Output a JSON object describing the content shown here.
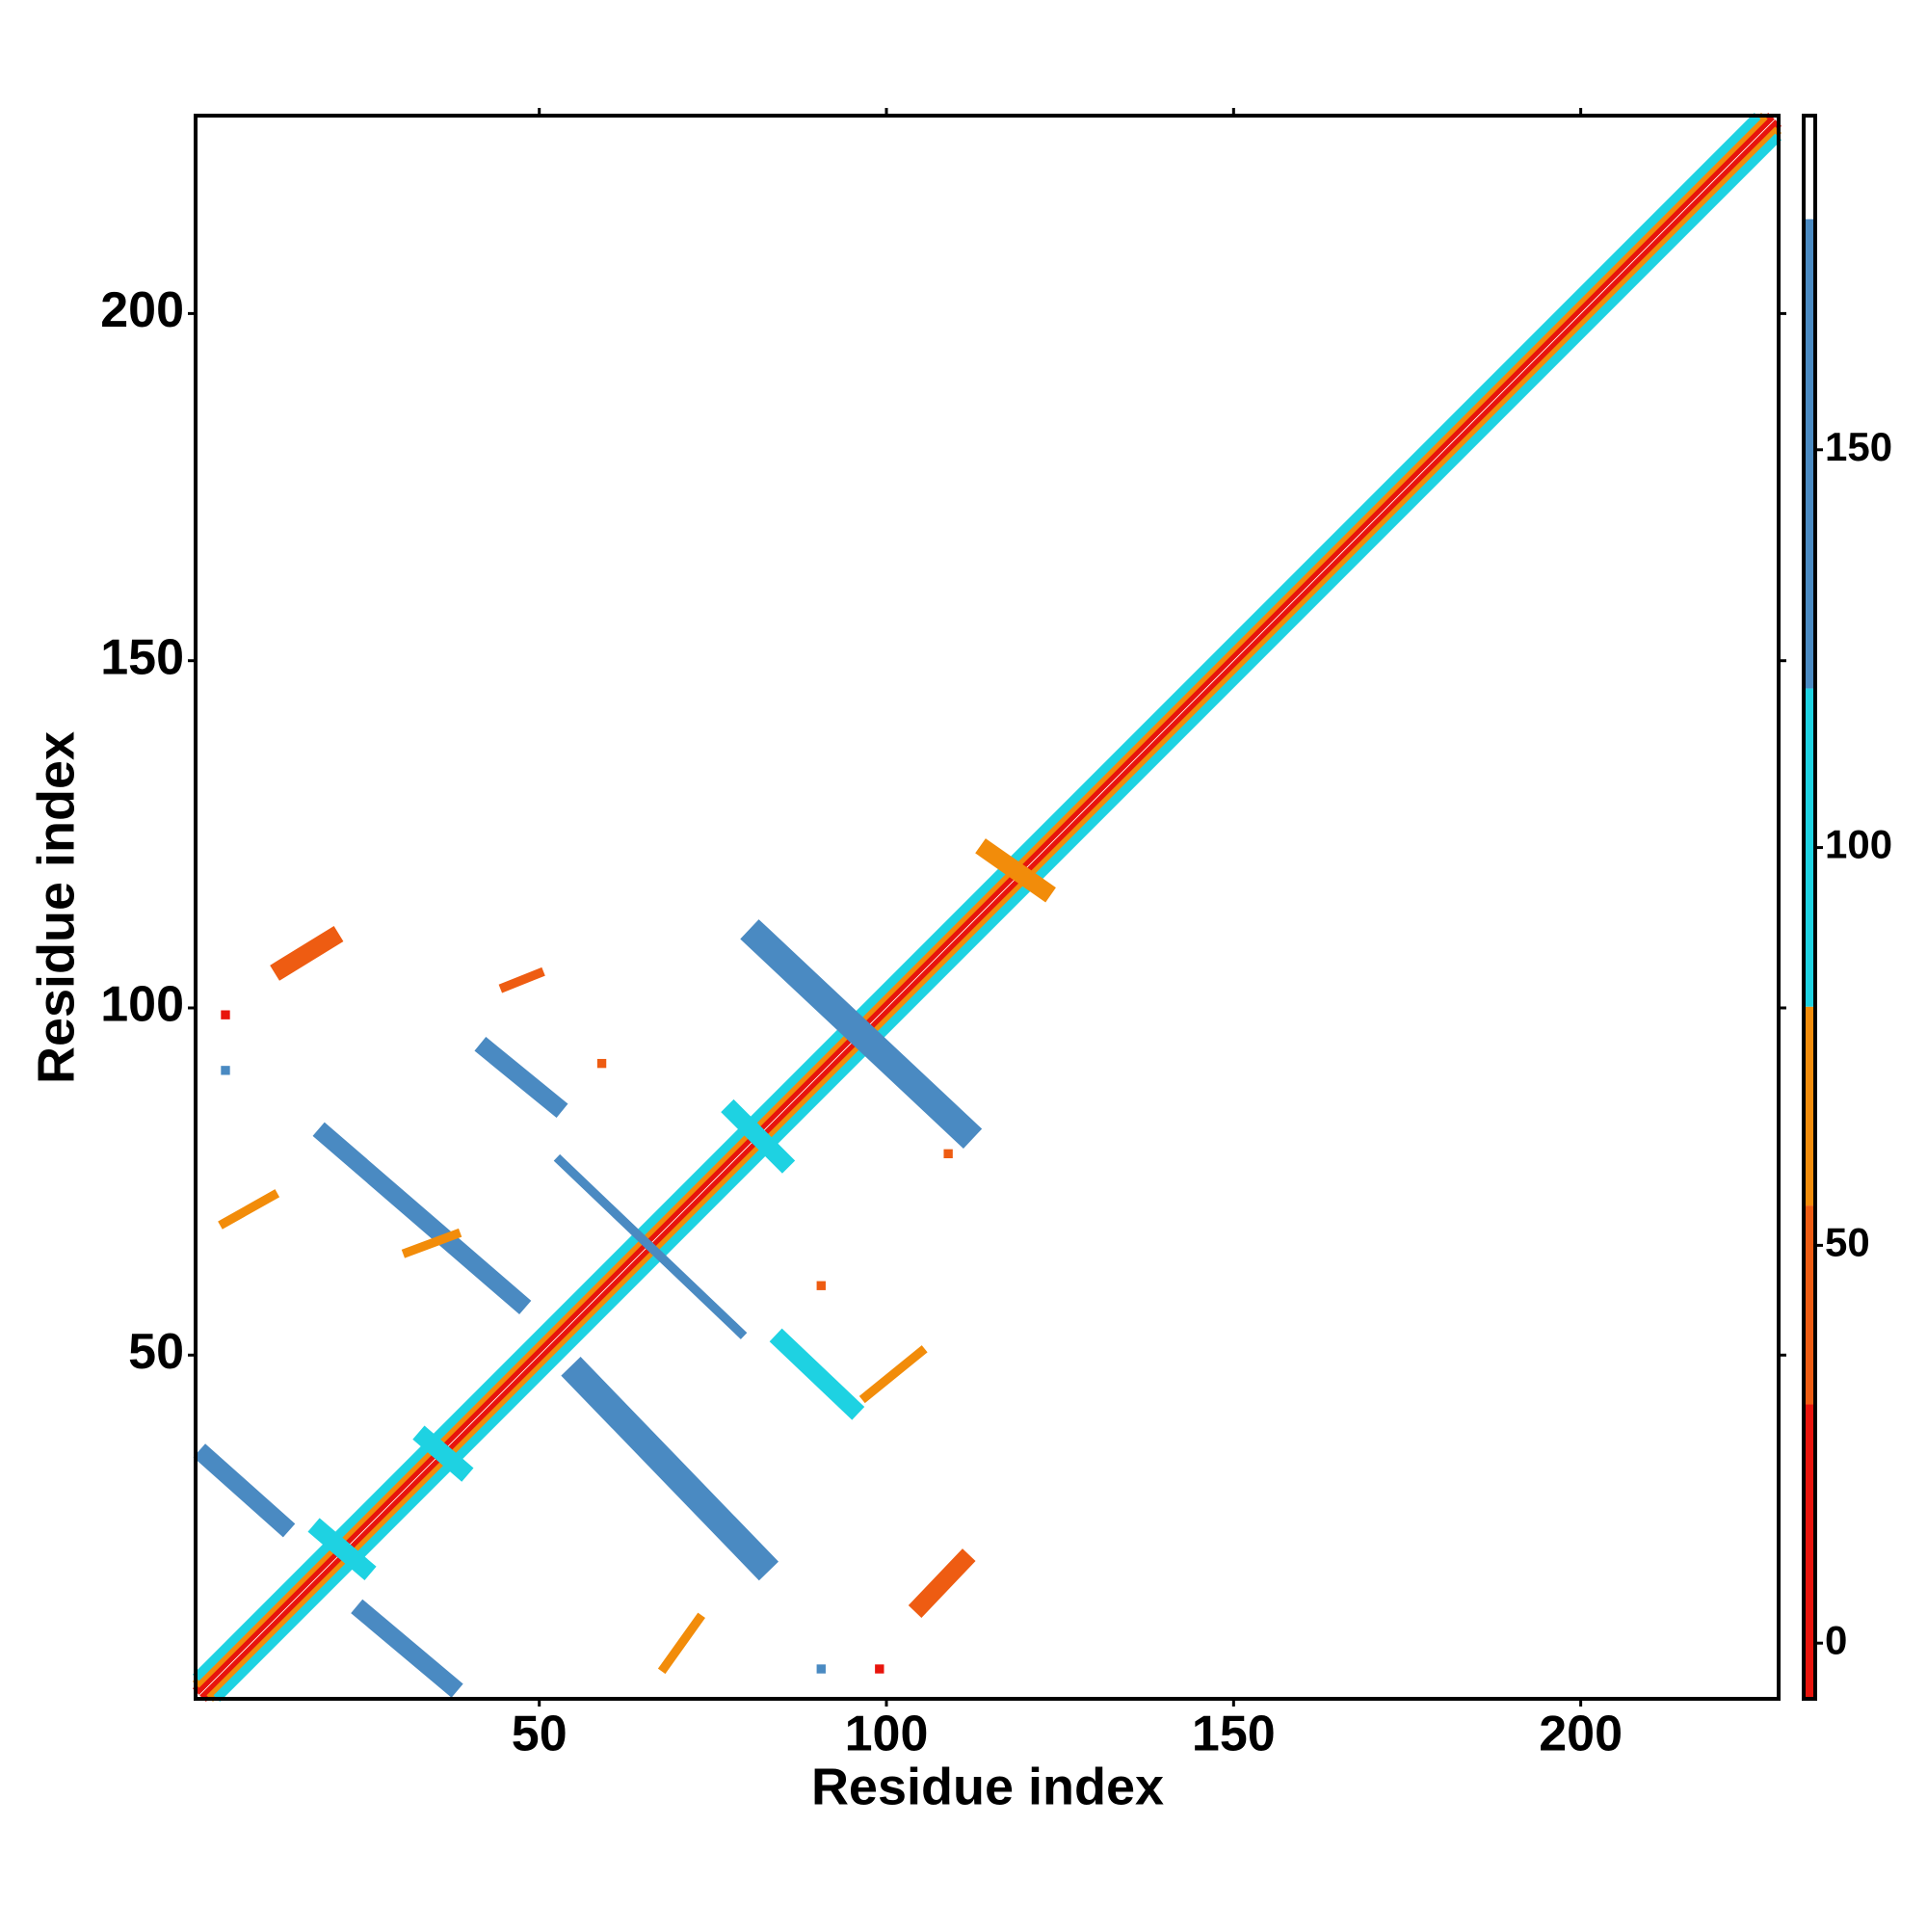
{
  "chart_data": {
    "type": "contact-map",
    "xlabel": "Residue index",
    "ylabel": "Residue index",
    "xlim": [
      0.5,
      228.5
    ],
    "ylim": [
      0.5,
      228.5
    ],
    "xticks": [
      50,
      100,
      150,
      200
    ],
    "yticks": [
      50,
      100,
      150,
      200
    ],
    "colorbar": {
      "lim": [
        -7,
        192
      ],
      "ticks": [
        0,
        50,
        100,
        150
      ],
      "bands": [
        {
          "from": -7,
          "to": 30,
          "color": "#e8140c"
        },
        {
          "from": 30,
          "to": 55,
          "color": "#ee5c12"
        },
        {
          "from": 55,
          "to": 80,
          "color": "#f28c0a"
        },
        {
          "from": 80,
          "to": 120,
          "color": "#1ed2e2"
        },
        {
          "from": 120,
          "to": 179,
          "color": "#4a8ac2"
        },
        {
          "from": 179,
          "to": 192,
          "color": "#ffffff"
        }
      ]
    },
    "segments": [
      {
        "x": [
          1,
          227
        ],
        "y": [
          2,
          228
        ],
        "value": 5,
        "width": 1
      },
      {
        "x": [
          2,
          228
        ],
        "y": [
          1,
          227
        ],
        "value": 5,
        "width": 1
      },
      {
        "x": [
          1,
          226
        ],
        "y": [
          3,
          228
        ],
        "value": 60,
        "width": 1
      },
      {
        "x": [
          3,
          228
        ],
        "y": [
          1,
          226
        ],
        "value": 60,
        "width": 1
      },
      {
        "x": [
          1,
          225
        ],
        "y": [
          4,
          228
        ],
        "value": 95,
        "width": 1
      },
      {
        "x": [
          4,
          228
        ],
        "y": [
          1,
          225
        ],
        "value": 95,
        "width": 1
      },
      {
        "x": [
          19.2,
          47
        ],
        "y": [
          81.7,
          57.7
        ],
        "value": 140,
        "width": 2
      },
      {
        "x": [
          42.5,
          52.3
        ],
        "y": [
          94,
          86
        ],
        "value": 140,
        "width": 2
      },
      {
        "x": [
          81.7,
          111
        ],
        "y": [
          110,
          82.5
        ],
        "value": 140,
        "width": 3
      },
      {
        "x": [
          55.9,
          81.7
        ],
        "y": [
          47,
          20.3
        ],
        "value": 140,
        "width": 3
      },
      {
        "x": [
          53,
          79
        ],
        "y": [
          78,
          53.2
        ],
        "value": 150,
        "width": 1
      },
      {
        "x": [
          85,
          95
        ],
        "y": [
          52,
          42.5
        ],
        "value": 110,
        "width": 2
      },
      {
        "x": [
          2,
          13
        ],
        "y": [
          35.4,
          25.6
        ],
        "value": 130,
        "width": 2
      },
      {
        "x": [
          24.7,
          37.2
        ],
        "y": [
          13,
          2.5
        ],
        "value": 140,
        "width": 2
      },
      {
        "x": [
          13,
          20
        ],
        "y": [
          105.7,
          110
        ],
        "value": 45,
        "width": 2
      },
      {
        "x": [
          105,
          111
        ],
        "y": [
          14,
          20.3
        ],
        "value": 45,
        "width": 2
      },
      {
        "x": [
          4.6,
          11.7
        ],
        "y": [
          69,
          73
        ],
        "value": 60,
        "width": 1
      },
      {
        "x": [
          45,
          50
        ],
        "y": [
          103,
          105
        ],
        "value": 55,
        "width": 1
      },
      {
        "x": [
          68,
          73
        ],
        "y": [
          5,
          12
        ],
        "value": 60,
        "width": 1
      },
      {
        "x": [
          97,
          105
        ],
        "y": [
          44,
          50.5
        ],
        "value": 60,
        "width": 1
      },
      {
        "x": [
          4.8,
          4.8
        ],
        "y": [
          99,
          99
        ],
        "value": 5,
        "width": 1
      },
      {
        "x": [
          4.8,
          4.8
        ],
        "y": [
          91,
          91
        ],
        "value": 130,
        "width": 1
      },
      {
        "x": [
          90.6,
          90.6
        ],
        "y": [
          60,
          60
        ],
        "value": 55,
        "width": 1
      },
      {
        "x": [
          99,
          99
        ],
        "y": [
          4.8,
          4.8
        ],
        "value": 5,
        "width": 1
      },
      {
        "x": [
          90.6,
          90.6
        ],
        "y": [
          4.8,
          4.8
        ],
        "value": 130,
        "width": 1
      },
      {
        "x": [
          33.6,
          38.7
        ],
        "y": [
          38,
          33.6
        ],
        "value": 100,
        "width": 2
      },
      {
        "x": [
          18.5,
          24.7
        ],
        "y": [
          24.7,
          19.4
        ],
        "value": 100,
        "width": 2
      },
      {
        "x": [
          78,
          85
        ],
        "y": [
          85,
          78
        ],
        "value": 100,
        "width": 2
      },
      {
        "x": [
          114.6,
          122.6
        ],
        "y": [
          122.6,
          117
        ],
        "value": 60,
        "width": 2
      },
      {
        "x": [
          31,
          38
        ],
        "y": [
          64.8,
          67.4
        ],
        "value": 60,
        "width": 1
      },
      {
        "x": [
          59,
          59
        ],
        "y": [
          92,
          92
        ],
        "value": 55,
        "width": 1
      },
      {
        "x": [
          108.9,
          108.9
        ],
        "y": [
          79,
          79
        ],
        "value": 55,
        "width": 1
      }
    ]
  }
}
